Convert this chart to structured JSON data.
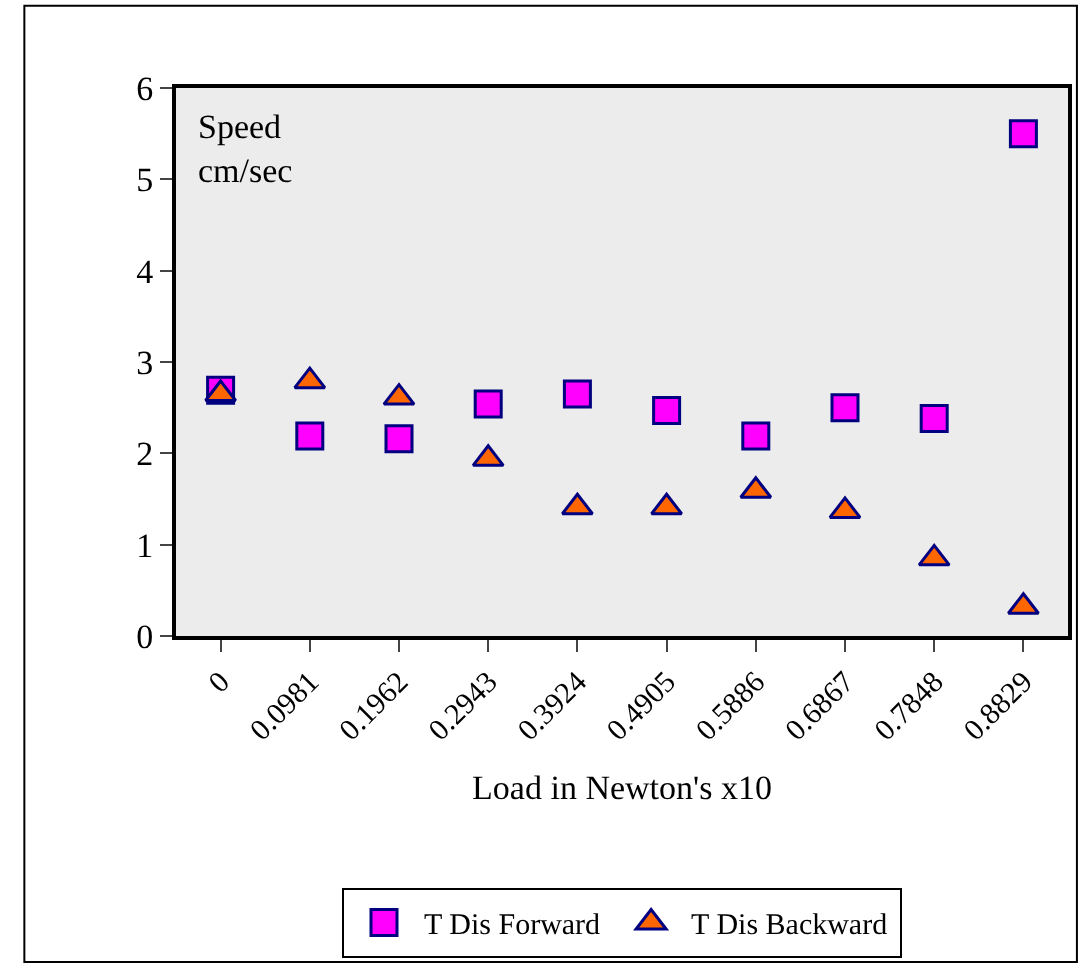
{
  "chart_data": {
    "type": "scatter",
    "xlabel": "Load in Newton's x10",
    "annotations": [
      "Speed\ncm/sec"
    ],
    "categories": [
      "0",
      "0.0981",
      "0.1962",
      "0.2943",
      "0.3924",
      "0.4905",
      "0.5886",
      "0.6867",
      "0.7848",
      "0.8829"
    ],
    "series": [
      {
        "name": "T Dis Forward",
        "color": "#ff00ff",
        "marker": "square",
        "values": [
          2.69,
          2.19,
          2.16,
          2.54,
          2.65,
          2.47,
          2.19,
          2.5,
          2.38,
          5.5
        ]
      },
      {
        "name": "T Dis Backward",
        "color": "#ff6600",
        "marker": "triangle",
        "values": [
          2.65,
          2.79,
          2.61,
          1.94,
          1.41,
          1.41,
          1.59,
          1.37,
          0.85,
          0.32
        ]
      }
    ],
    "ylim": [
      0,
      6
    ],
    "yticks": [
      0,
      1,
      2,
      3,
      4,
      5,
      6
    ],
    "grid": false,
    "legend": "bottom"
  }
}
